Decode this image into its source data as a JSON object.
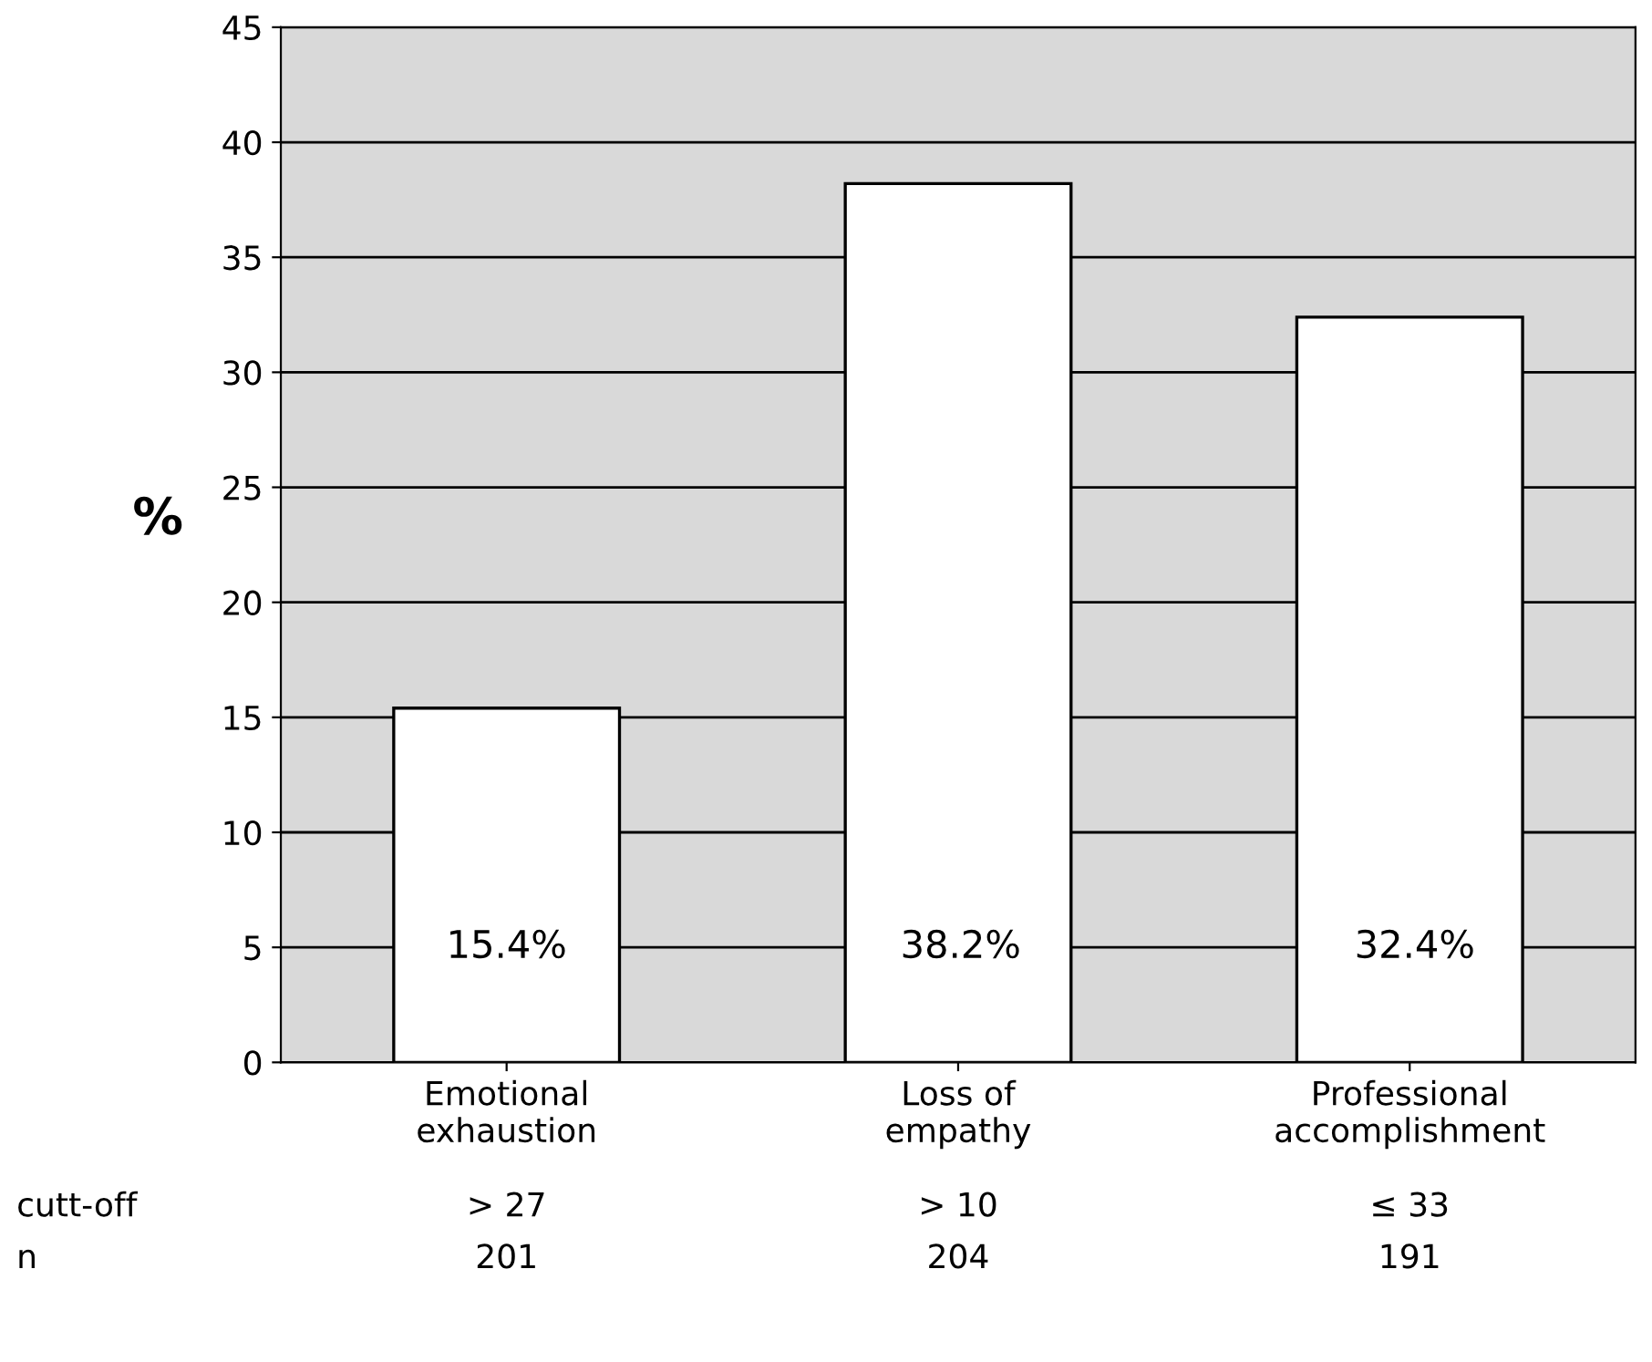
{
  "chart_data": {
    "type": "bar",
    "categories": [
      "Emotional\nexhaustion",
      "Loss of\nempathy",
      "Professional\naccomplishment"
    ],
    "values": [
      15.4,
      38.2,
      32.4
    ],
    "value_labels": [
      "15.4%",
      "38.2%",
      "32.4%"
    ],
    "color": "#ffffff",
    "ylabel": "%",
    "ylim": [
      0,
      45
    ],
    "yticks": [
      0,
      5,
      10,
      15,
      20,
      25,
      30,
      35,
      40,
      45
    ],
    "grid": "y",
    "annotations": [
      "cutt-off",
      "> 27",
      "> 10",
      "≤ 33",
      "n",
      "201",
      "204",
      "191"
    ]
  }
}
